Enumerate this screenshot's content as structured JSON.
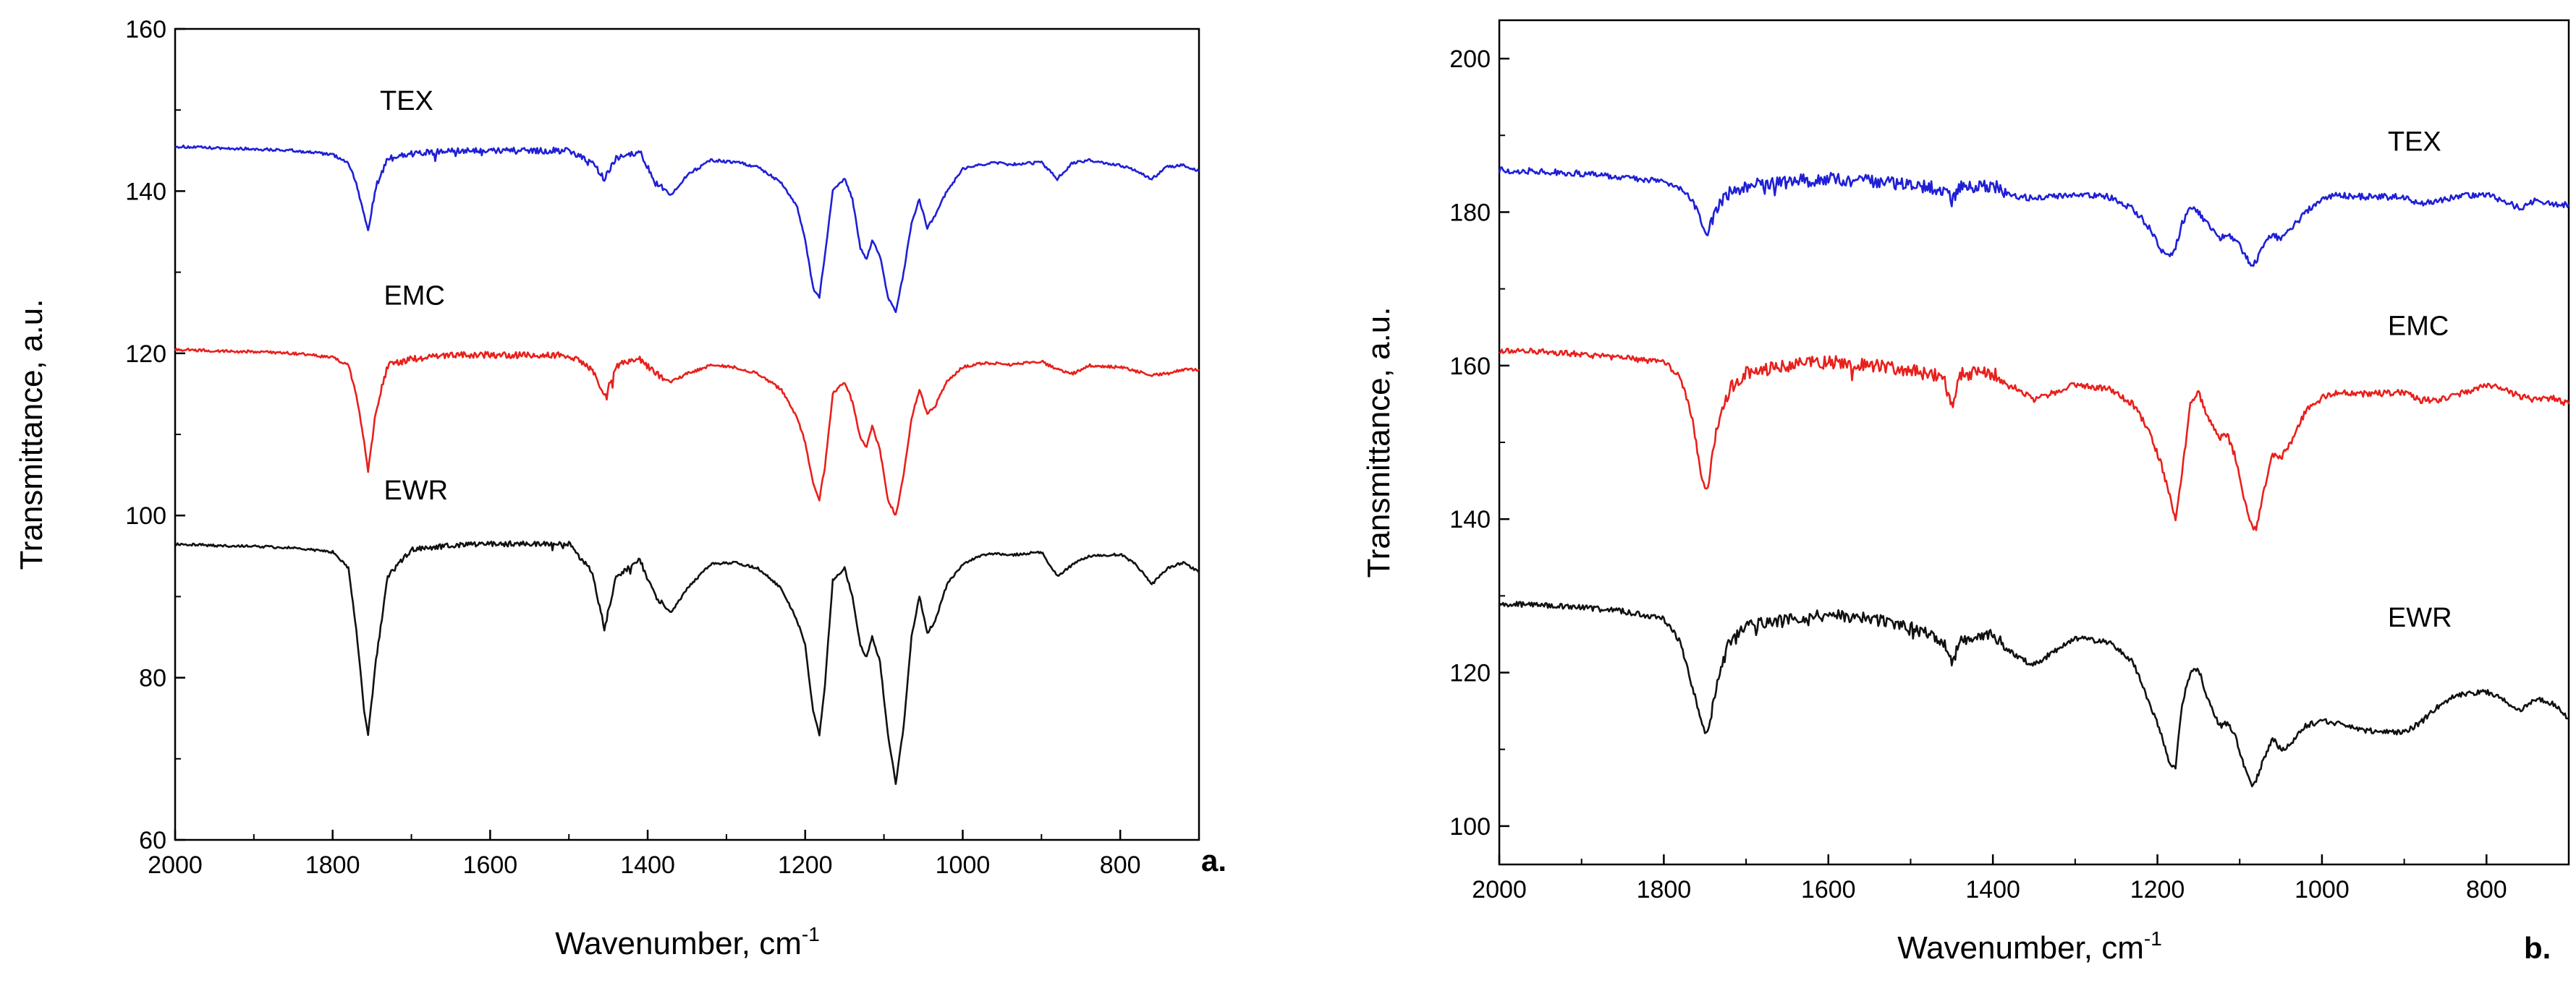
{
  "colors": {
    "TEX": "#1f1fd6",
    "EMC": "#e8201c",
    "EWR": "#111111",
    "axis": "#000000"
  },
  "chart_data": [
    {
      "type": "line",
      "panel_label": "a.",
      "xlabel": "Wavenumber, cm",
      "xlabel_sup": "-1",
      "ylabel": "Transmittance, a.u.",
      "xlim": [
        2000,
        700
      ],
      "ylim": [
        60,
        160
      ],
      "x_reversed": true,
      "xticks": [
        2000,
        1800,
        1600,
        1400,
        1200,
        1000,
        800
      ],
      "yticks": [
        60,
        80,
        100,
        120,
        140,
        160
      ],
      "grid": false,
      "legend": "inline labels above each trace",
      "series": [
        {
          "name": "TEX",
          "color": "#1f1fd6",
          "label_at": [
            1740,
            150
          ],
          "baseline": 145,
          "noise": 0.35,
          "tail_drop": 2.5,
          "x": [
            2000,
            1950,
            1900,
            1850,
            1800,
            1780,
            1770,
            1760,
            1755,
            1745,
            1730,
            1700,
            1650,
            1600,
            1500,
            1470,
            1455,
            1440,
            1410,
            1390,
            1370,
            1350,
            1320,
            1290,
            1260,
            1230,
            1210,
            1200,
            1190,
            1182,
            1175,
            1165,
            1150,
            1140,
            1130,
            1122,
            1115,
            1105,
            1095,
            1085,
            1075,
            1065,
            1055,
            1045,
            1035,
            1020,
            1000,
            980,
            960,
            940,
            900,
            880,
            860,
            840,
            800,
            780,
            760,
            740,
            720,
            700
          ],
          "y": [
            145.5,
            145.3,
            145.2,
            145,
            144.5,
            143.5,
            141,
            137,
            135,
            140.5,
            144,
            144.6,
            145,
            145,
            145,
            143.5,
            141.5,
            144,
            144.8,
            141,
            139.5,
            142,
            143.8,
            143.6,
            143,
            141,
            138,
            134,
            128,
            127,
            132,
            140,
            141.5,
            139,
            133,
            131.5,
            134,
            132,
            127,
            125,
            130,
            136,
            139,
            135.5,
            137,
            140,
            142.7,
            143.2,
            143.5,
            143.3,
            143.5,
            141.5,
            143.5,
            143.8,
            143.2,
            142.5,
            141.5,
            143,
            143.2,
            142.5
          ]
        },
        {
          "name": "EMC",
          "color": "#e8201c",
          "label_at": [
            1735,
            126
          ],
          "baseline": 120,
          "noise": 0.35,
          "tail_drop": 2.5,
          "x": [
            2000,
            1950,
            1900,
            1850,
            1800,
            1780,
            1770,
            1760,
            1755,
            1745,
            1730,
            1700,
            1650,
            1600,
            1500,
            1470,
            1455,
            1440,
            1410,
            1390,
            1370,
            1350,
            1320,
            1290,
            1260,
            1230,
            1210,
            1200,
            1190,
            1182,
            1175,
            1165,
            1150,
            1140,
            1130,
            1122,
            1115,
            1105,
            1095,
            1085,
            1075,
            1065,
            1055,
            1045,
            1035,
            1020,
            1000,
            980,
            960,
            940,
            900,
            880,
            860,
            840,
            800,
            780,
            760,
            740,
            720,
            700
          ],
          "y": [
            120.5,
            120.3,
            120.2,
            120,
            119.5,
            118.5,
            115,
            109,
            105.5,
            113,
            118.5,
            119.3,
            119.8,
            119.8,
            119.8,
            118,
            114.5,
            118.5,
            119.3,
            117.5,
            116.5,
            117.5,
            118.5,
            118.3,
            117.5,
            115.5,
            112,
            109,
            104,
            102,
            106,
            115,
            116.5,
            114,
            109.5,
            108.5,
            111,
            108,
            102,
            100,
            105,
            112,
            115.5,
            112.5,
            113.5,
            116.5,
            118.3,
            118.7,
            118.8,
            118.6,
            119,
            118,
            117.5,
            118.5,
            118.3,
            117.8,
            117.3,
            117.5,
            118,
            118
          ]
        },
        {
          "name": "EWR",
          "color": "#111111",
          "label_at": [
            1735,
            102
          ],
          "baseline": 96,
          "noise": 0.3,
          "tail_drop": 2.5,
          "x": [
            2000,
            1950,
            1900,
            1850,
            1800,
            1780,
            1770,
            1760,
            1755,
            1745,
            1730,
            1700,
            1650,
            1600,
            1500,
            1470,
            1455,
            1440,
            1410,
            1390,
            1370,
            1350,
            1320,
            1290,
            1260,
            1230,
            1210,
            1200,
            1190,
            1182,
            1175,
            1165,
            1150,
            1140,
            1130,
            1122,
            1115,
            1105,
            1095,
            1085,
            1075,
            1065,
            1055,
            1045,
            1035,
            1020,
            1000,
            980,
            960,
            940,
            900,
            880,
            860,
            840,
            800,
            780,
            760,
            740,
            720,
            700
          ],
          "y": [
            96.5,
            96.3,
            96.2,
            96,
            95.5,
            93.5,
            86,
            76,
            73,
            82,
            92.5,
            95.8,
            96.3,
            96.5,
            96.5,
            93,
            86,
            92.5,
            94.5,
            90,
            88,
            91,
            94,
            94.2,
            93.5,
            91,
            87,
            84,
            76,
            73,
            79,
            92,
            93.5,
            90,
            84,
            82.5,
            85,
            82,
            73,
            67,
            74,
            85,
            90,
            85.5,
            87,
            91.5,
            94,
            95,
            95.3,
            95.1,
            95.5,
            92.5,
            94,
            95,
            95.2,
            94,
            91.5,
            93.5,
            94.2,
            93
          ]
        }
      ]
    },
    {
      "type": "line",
      "panel_label": "b.",
      "xlabel": "Wavenumber, cm",
      "xlabel_sup": "-1",
      "ylabel": "Transmittance, a.u.",
      "xlim": [
        2000,
        700
      ],
      "ylim": [
        95,
        205
      ],
      "x_reversed": true,
      "xticks": [
        2000,
        1800,
        1600,
        1400,
        1200,
        1000,
        800
      ],
      "yticks": [
        100,
        120,
        140,
        160,
        180,
        200
      ],
      "grid": false,
      "legend": "inline labels above each trace",
      "series": [
        {
          "name": "TEX",
          "color": "#1f1fd6",
          "label_at": [
            920,
            188
          ],
          "baseline": 185,
          "noise": 0.8,
          "tail_drop": 4,
          "x": [
            2000,
            1950,
            1900,
            1850,
            1800,
            1780,
            1765,
            1755,
            1750,
            1745,
            1735,
            1720,
            1700,
            1650,
            1600,
            1550,
            1500,
            1460,
            1450,
            1440,
            1400,
            1370,
            1350,
            1300,
            1260,
            1230,
            1210,
            1195,
            1185,
            1178,
            1170,
            1160,
            1150,
            1140,
            1125,
            1115,
            1105,
            1095,
            1085,
            1080,
            1070,
            1060,
            1050,
            1040,
            1020,
            1000,
            980,
            950,
            900,
            880,
            860,
            840,
            800,
            780,
            760,
            740,
            720,
            700
          ],
          "y": [
            185.5,
            185.3,
            185,
            184.5,
            184,
            183,
            181.5,
            179,
            177.5,
            178,
            180.5,
            182.5,
            183.5,
            184,
            184.3,
            184,
            183.5,
            183,
            181.5,
            183.2,
            183.5,
            182,
            181.8,
            182.3,
            182,
            180.5,
            178,
            175,
            174,
            175.5,
            178.5,
            180.5,
            180,
            178.5,
            176.5,
            177,
            176.5,
            174.5,
            173,
            173.5,
            176,
            177,
            176.5,
            177.5,
            180,
            181.8,
            182.2,
            182,
            182,
            181,
            181.5,
            182,
            182.3,
            181.5,
            180.5,
            181.5,
            181,
            181
          ]
        },
        {
          "name": "EMC",
          "color": "#e8201c",
          "label_at": [
            920,
            164
          ],
          "baseline": 161,
          "noise": 0.8,
          "tail_drop": 5,
          "x": [
            2000,
            1950,
            1900,
            1850,
            1800,
            1780,
            1765,
            1755,
            1750,
            1745,
            1735,
            1720,
            1700,
            1650,
            1600,
            1550,
            1500,
            1460,
            1450,
            1440,
            1400,
            1370,
            1350,
            1300,
            1260,
            1230,
            1210,
            1195,
            1185,
            1178,
            1170,
            1160,
            1150,
            1140,
            1125,
            1115,
            1105,
            1095,
            1085,
            1080,
            1070,
            1060,
            1050,
            1040,
            1020,
            1000,
            980,
            950,
            900,
            880,
            860,
            840,
            800,
            780,
            760,
            740,
            720,
            700
          ],
          "y": [
            162,
            161.8,
            161.5,
            161,
            160.5,
            158.5,
            153,
            146,
            144,
            145,
            152,
            157,
            159,
            160,
            160.5,
            160,
            159.5,
            158.5,
            154.5,
            159,
            159,
            157,
            155.5,
            157.5,
            157,
            155,
            151.5,
            147,
            143,
            140,
            146,
            155,
            156.5,
            153.5,
            150.5,
            151,
            148,
            143,
            139,
            138.5,
            144,
            148.5,
            148,
            149.5,
            154,
            155.8,
            156.5,
            156.3,
            156.5,
            155.5,
            155.5,
            156,
            157.5,
            157,
            156,
            155.5,
            155.8,
            155
          ]
        },
        {
          "name": "EWR",
          "color": "#111111",
          "label_at": [
            920,
            126
          ],
          "baseline": 129,
          "noise": 0.7,
          "tail_drop": 4,
          "x": [
            2000,
            1950,
            1900,
            1850,
            1800,
            1780,
            1765,
            1755,
            1750,
            1745,
            1735,
            1720,
            1700,
            1650,
            1600,
            1550,
            1500,
            1460,
            1450,
            1440,
            1400,
            1370,
            1350,
            1300,
            1260,
            1230,
            1210,
            1195,
            1185,
            1178,
            1170,
            1160,
            1150,
            1140,
            1125,
            1115,
            1105,
            1095,
            1085,
            1080,
            1070,
            1060,
            1050,
            1040,
            1020,
            1000,
            980,
            950,
            900,
            880,
            860,
            840,
            800,
            780,
            760,
            740,
            720,
            700
          ],
          "y": [
            129,
            128.8,
            128.5,
            128,
            127,
            124,
            118,
            114,
            112,
            113,
            119,
            124,
            126,
            127,
            127.5,
            127,
            126,
            124,
            121,
            124,
            125,
            122,
            121,
            124.5,
            124,
            121.5,
            116,
            112,
            108,
            107.5,
            116,
            120,
            120.5,
            117,
            113,
            113.5,
            111.5,
            108,
            105.5,
            106,
            109,
            111.5,
            110,
            110.5,
            113,
            113.8,
            113.3,
            112.5,
            112.2,
            113.5,
            115.5,
            117,
            117.5,
            116.5,
            115,
            116.5,
            116,
            114
          ]
        }
      ]
    }
  ]
}
